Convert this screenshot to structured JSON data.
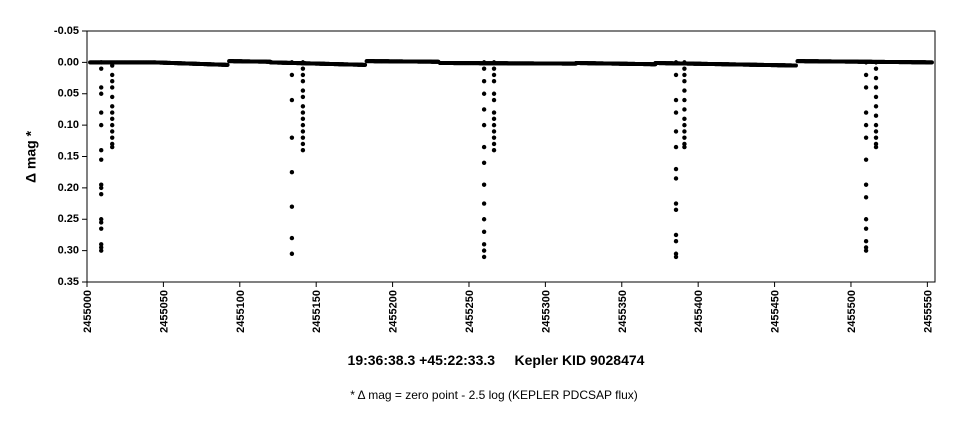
{
  "chart_data": {
    "type": "scatter",
    "title": "",
    "xlabel": "19:36:38.3 +45:22:33.3     Kepler KID 9028474",
    "ylabel": "Δ mag *",
    "footnote": "* Δ mag = zero point - 2.5 log (KEPLER PDCSAP flux)",
    "xlim": [
      2455000,
      2455555
    ],
    "ylim": [
      -0.05,
      0.35
    ],
    "y_inverted": true,
    "grid": false,
    "legend": "none",
    "marker_color": "#000000",
    "xticks": [
      2455000,
      2455050,
      2455100,
      2455150,
      2455200,
      2455250,
      2455300,
      2455350,
      2455400,
      2455450,
      2455500,
      2455550
    ],
    "xtick_labels": [
      "2455000",
      "2455050",
      "2455100",
      "2455150",
      "2455200",
      "2455250",
      "2455300",
      "2455350",
      "2455400",
      "2455450",
      "2455500",
      "2455550"
    ],
    "yticks": [
      -0.05,
      0.0,
      0.05,
      0.1,
      0.15,
      0.2,
      0.25,
      0.3,
      0.35
    ],
    "ytick_labels": [
      "-0.05",
      "0.00",
      "0.05",
      "0.10",
      "0.15",
      "0.20",
      "0.25",
      "0.30",
      "0.35"
    ],
    "baseline_segments": [
      {
        "x_start": 2455002,
        "x_end": 2455044,
        "y_start": 0.0,
        "y_end": 0.0
      },
      {
        "x_start": 2455044,
        "x_end": 2455092,
        "y_start": 0.0,
        "y_end": 0.004
      },
      {
        "x_start": 2455093,
        "x_end": 2455120,
        "y_start": -0.002,
        "y_end": -0.001
      },
      {
        "x_start": 2455120,
        "x_end": 2455182,
        "y_start": 0.0,
        "y_end": 0.004
      },
      {
        "x_start": 2455183,
        "x_end": 2455230,
        "y_start": -0.002,
        "y_end": -0.001
      },
      {
        "x_start": 2455231,
        "x_end": 2455320,
        "y_start": 0.001,
        "y_end": 0.002
      },
      {
        "x_start": 2455320,
        "x_end": 2455372,
        "y_start": 0.001,
        "y_end": 0.003
      },
      {
        "x_start": 2455372,
        "x_end": 2455464,
        "y_start": 0.001,
        "y_end": 0.005
      },
      {
        "x_start": 2455465,
        "x_end": 2455553,
        "y_start": -0.002,
        "y_end": 0.0
      }
    ],
    "eclipses": [
      {
        "events": [
          {
            "x": 2455009.3,
            "y": [
              0.0,
              0.01,
              0.04,
              0.05,
              0.08,
              0.1,
              0.14,
              0.155,
              0.195,
              0.2,
              0.21,
              0.25,
              0.255,
              0.265,
              0.29,
              0.295,
              0.3
            ]
          },
          {
            "x": 2455016.5,
            "y": [
              0.005,
              0.02,
              0.03,
              0.04,
              0.055,
              0.07,
              0.08,
              0.09,
              0.1,
              0.11,
              0.12,
              0.13,
              0.135
            ]
          }
        ]
      },
      {
        "events": [
          {
            "x": 2455134.1,
            "y": [
              0.0,
              0.02,
              0.06,
              0.12,
              0.175,
              0.23,
              0.28,
              0.305
            ]
          },
          {
            "x": 2455141.3,
            "y": [
              0.0,
              0.01,
              0.02,
              0.03,
              0.045,
              0.055,
              0.07,
              0.08,
              0.09,
              0.1,
              0.11,
              0.12,
              0.13,
              0.14
            ]
          }
        ]
      },
      {
        "events": [
          {
            "x": 2455259.9,
            "y": [
              0.0,
              0.01,
              0.03,
              0.05,
              0.075,
              0.1,
              0.135,
              0.16,
              0.195,
              0.225,
              0.25,
              0.27,
              0.29,
              0.3,
              0.31
            ]
          },
          {
            "x": 2455266.4,
            "y": [
              0.0,
              0.01,
              0.02,
              0.03,
              0.05,
              0.06,
              0.08,
              0.09,
              0.1,
              0.11,
              0.12,
              0.13,
              0.14
            ]
          }
        ]
      },
      {
        "events": [
          {
            "x": 2455385.5,
            "y": [
              0.0,
              0.02,
              0.06,
              0.08,
              0.11,
              0.135,
              0.17,
              0.185,
              0.225,
              0.235,
              0.275,
              0.285,
              0.305,
              0.31
            ]
          },
          {
            "x": 2455391.0,
            "y": [
              0.0,
              0.01,
              0.02,
              0.03,
              0.045,
              0.06,
              0.075,
              0.09,
              0.1,
              0.11,
              0.12,
              0.13,
              0.135
            ]
          }
        ]
      },
      {
        "events": [
          {
            "x": 2455509.9,
            "y": [
              0.0,
              0.02,
              0.04,
              0.08,
              0.1,
              0.12,
              0.155,
              0.195,
              0.215,
              0.25,
              0.265,
              0.285,
              0.295,
              0.3
            ]
          },
          {
            "x": 2455516.4,
            "y": [
              0.0,
              0.01,
              0.025,
              0.04,
              0.055,
              0.07,
              0.085,
              0.1,
              0.11,
              0.12,
              0.13,
              0.135
            ]
          }
        ]
      }
    ]
  }
}
